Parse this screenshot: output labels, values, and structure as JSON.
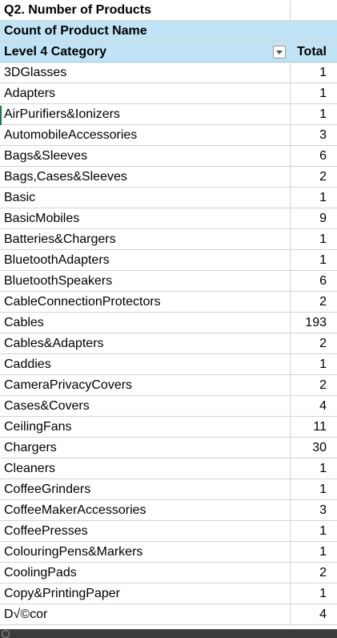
{
  "title": "Q2. Number of Products",
  "pivot": {
    "value_header": "Count of Product Name",
    "row_header": "Level 4 Category",
    "total_header": "Total",
    "filter_icon": "filter-dropdown-icon"
  },
  "rows": [
    {
      "category": "3DGlasses",
      "total": "1"
    },
    {
      "category": "Adapters",
      "total": "1"
    },
    {
      "category": "AirPurifiers&Ionizers",
      "total": "1"
    },
    {
      "category": "AutomobileAccessories",
      "total": "3"
    },
    {
      "category": "Bags&Sleeves",
      "total": "6"
    },
    {
      "category": "Bags,Cases&Sleeves",
      "total": "2"
    },
    {
      "category": "Basic",
      "total": "1"
    },
    {
      "category": "BasicMobiles",
      "total": "9"
    },
    {
      "category": "Batteries&Chargers",
      "total": "1"
    },
    {
      "category": "BluetoothAdapters",
      "total": "1"
    },
    {
      "category": "BluetoothSpeakers",
      "total": "6"
    },
    {
      "category": "CableConnectionProtectors",
      "total": "2"
    },
    {
      "category": "Cables",
      "total": "193"
    },
    {
      "category": "Cables&Adapters",
      "total": "2"
    },
    {
      "category": "Caddies",
      "total": "1"
    },
    {
      "category": "CameraPrivacyCovers",
      "total": "2"
    },
    {
      "category": "Cases&Covers",
      "total": "4"
    },
    {
      "category": "CeilingFans",
      "total": "11"
    },
    {
      "category": "Chargers",
      "total": "30"
    },
    {
      "category": "Cleaners",
      "total": "1"
    },
    {
      "category": "CoffeeGrinders",
      "total": "1"
    },
    {
      "category": "CoffeeMakerAccessories",
      "total": "3"
    },
    {
      "category": "CoffeePresses",
      "total": "1"
    },
    {
      "category": "ColouringPens&Markers",
      "total": "1"
    },
    {
      "category": "CoolingPads",
      "total": "2"
    },
    {
      "category": "Copy&PrintingPaper",
      "total": "1"
    },
    {
      "category": "D√©cor",
      "total": "4"
    }
  ],
  "colors": {
    "header_fill": "#c0e4f5",
    "gridline": "#d4d4d4",
    "selection": "#217346"
  }
}
